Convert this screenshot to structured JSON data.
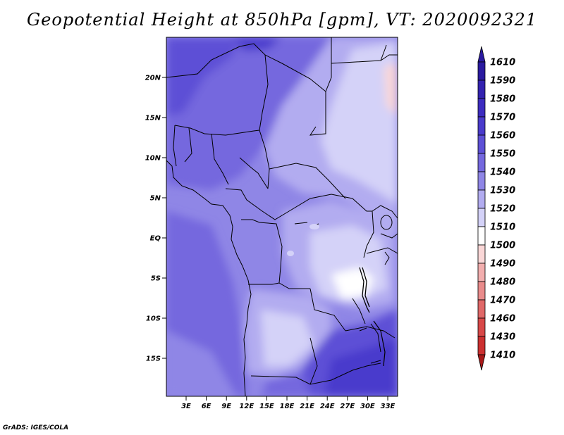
{
  "title": "Geopotential Height at 850hPa [gpm], VT: 2020092321",
  "credit": "GrADS: IGES/COLA",
  "map": {
    "lat_ticks": [
      "20N",
      "15N",
      "10N",
      "5N",
      "EQ",
      "5S",
      "10S",
      "15S"
    ],
    "lon_ticks": [
      "3E",
      "6E",
      "9E",
      "12E",
      "15E",
      "18E",
      "21E",
      "24E",
      "27E",
      "30E",
      "33E"
    ]
  },
  "colorbar": {
    "levels": [
      "1610",
      "1590",
      "1580",
      "1570",
      "1560",
      "1550",
      "1540",
      "1530",
      "1520",
      "1510",
      "1500",
      "1490",
      "1480",
      "1470",
      "1460",
      "1430",
      "1410"
    ],
    "colors": [
      "#2a1aa0",
      "#3322b0",
      "#3d2cc0",
      "#4a3bcc",
      "#5d50d6",
      "#7468de",
      "#8f86e6",
      "#b2acf0",
      "#d4d2f8",
      "#ffffff",
      "#fad7d7",
      "#f2aeae",
      "#e98b8b",
      "#e06868",
      "#d84848",
      "#cc3030",
      "#a81818"
    ]
  },
  "legend_arrows": {
    "top": "#2a1aa0",
    "bottom": "#a81818"
  }
}
